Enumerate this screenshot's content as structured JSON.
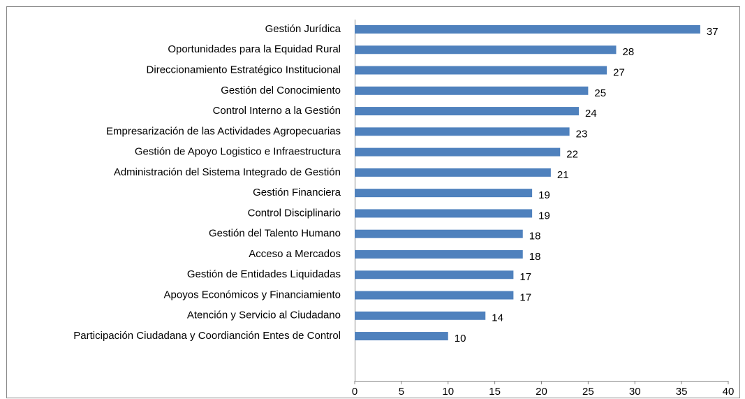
{
  "chart_data": {
    "type": "bar",
    "orientation": "horizontal",
    "categories": [
      "Gestión Jurídica",
      "Oportunidades para la Equidad Rural",
      "Direccionamiento Estratégico Institucional",
      "Gestión del Conocimiento",
      "Control Interno a la Gestión",
      "Empresarización de las Actividades Agropecuarias",
      "Gestión de Apoyo Logistico e Infraestructura",
      "Administración del Sistema Integrado de Gestión",
      "Gestión Financiera",
      "Control Disciplinario",
      "Gestión del Talento Humano",
      "Acceso a Mercados",
      "Gestión de Entidades Liquidadas",
      "Apoyos Económicos y Financiamiento",
      "Atención y Servicio al Ciudadano",
      "Participación Ciudadana y Coordianción Entes de Control"
    ],
    "values": [
      37,
      28,
      27,
      25,
      24,
      23,
      22,
      21,
      19,
      19,
      18,
      18,
      17,
      17,
      14,
      10
    ],
    "color": "#4f81bd",
    "xlim": [
      0,
      40
    ],
    "xticks": [
      0,
      5,
      10,
      15,
      20,
      25,
      30,
      35,
      40
    ],
    "grid": false
  }
}
